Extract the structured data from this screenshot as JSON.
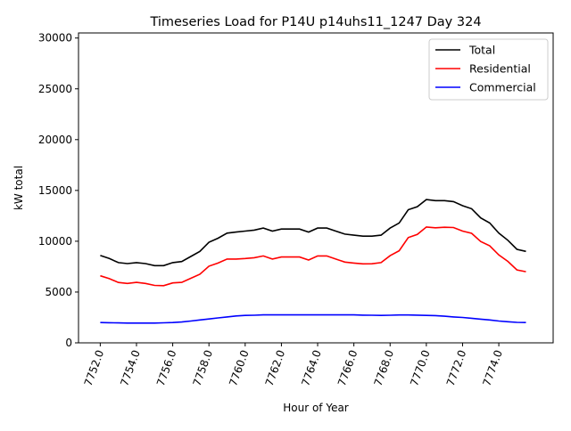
{
  "chart_data": {
    "type": "line",
    "title": "Timeseries Load for P14U p14uhs11_1247  Day 324",
    "xlabel": "Hour of Year",
    "ylabel": "kW total",
    "ylim": [
      0,
      30500
    ],
    "xlim": [
      7750.8,
      7777.0
    ],
    "grid": false,
    "legend_position": "top-right",
    "x_start": 7752,
    "x_step": 0.5,
    "xticks": [
      "7752.0",
      "7754.0",
      "7756.0",
      "7758.0",
      "7760.0",
      "7762.0",
      "7764.0",
      "7766.0",
      "7768.0",
      "7770.0",
      "7772.0",
      "7774.0"
    ],
    "xtick_values": [
      7752,
      7754,
      7756,
      7758,
      7760,
      7762,
      7764,
      7766,
      7768,
      7770,
      7772,
      7774
    ],
    "yticks": [
      "0",
      "5000",
      "10000",
      "15000",
      "20000",
      "25000",
      "30000"
    ],
    "ytick_values": [
      0,
      5000,
      10000,
      15000,
      20000,
      25000,
      30000
    ],
    "series": [
      {
        "name": "Total",
        "color": "#000000",
        "values": [
          8600,
          8300,
          7900,
          7800,
          7900,
          7800,
          7600,
          7600,
          7900,
          8000,
          8500,
          9000,
          9900,
          10300,
          10800,
          10900,
          11000,
          11100,
          11300,
          11000,
          11200,
          11200,
          11200,
          10900,
          11300,
          11300,
          11000,
          10700,
          10600,
          10500,
          10500,
          10600,
          11300,
          11800,
          13100,
          13400,
          14100,
          14000,
          14000,
          13900,
          13500,
          13200,
          12300,
          11800,
          10800,
          10100,
          9200,
          9000
        ]
      },
      {
        "name": "Residential",
        "color": "#ff0000",
        "values": [
          6600,
          6320,
          5940,
          5850,
          5950,
          5850,
          5650,
          5630,
          5900,
          5950,
          6350,
          6750,
          7550,
          7850,
          8250,
          8250,
          8300,
          8380,
          8550,
          8250,
          8450,
          8450,
          8450,
          8150,
          8550,
          8550,
          8250,
          7950,
          7850,
          7770,
          7780,
          7900,
          8580,
          9060,
          10360,
          10670,
          11400,
          11320,
          11380,
          11350,
          11000,
          10780,
          9970,
          9550,
          8650,
          8020,
          7180,
          7000
        ]
      },
      {
        "name": "Commercial",
        "color": "#0000ff",
        "values": [
          2000,
          1980,
          1960,
          1950,
          1950,
          1950,
          1950,
          1970,
          2000,
          2050,
          2150,
          2250,
          2350,
          2450,
          2550,
          2650,
          2700,
          2720,
          2750,
          2750,
          2750,
          2750,
          2750,
          2750,
          2750,
          2750,
          2750,
          2750,
          2750,
          2730,
          2720,
          2700,
          2720,
          2740,
          2740,
          2730,
          2700,
          2680,
          2620,
          2550,
          2500,
          2420,
          2330,
          2250,
          2150,
          2080,
          2020,
          2000
        ]
      }
    ]
  }
}
